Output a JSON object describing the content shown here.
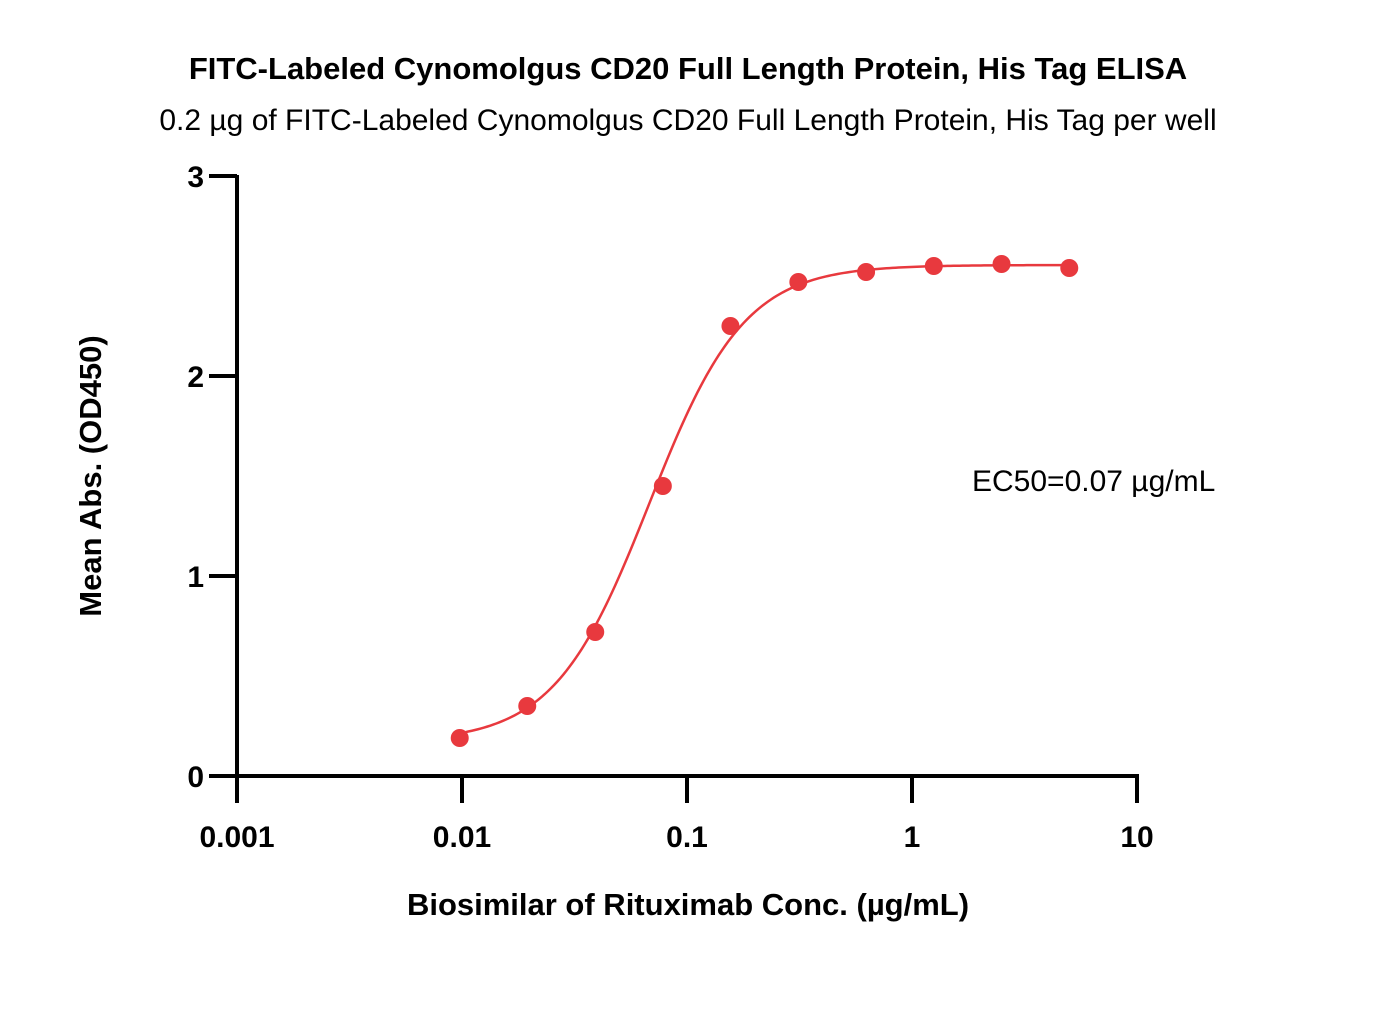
{
  "chart_data": {
    "type": "scatter",
    "title": "FITC-Labeled Cynomolgus CD20 Full Length Protein, His Tag ELISA",
    "subtitle": "0.2 µg of FITC-Labeled Cynomolgus CD20 Full Length Protein, His Tag per well",
    "xlabel": "Biosimilar of Rituximab Conc. (µg/mL)",
    "ylabel": "Mean Abs. (OD450)",
    "x_scale": "log",
    "xlim": [
      0.001,
      10
    ],
    "ylim": [
      0,
      3
    ],
    "x_ticks": [
      0.001,
      0.01,
      0.1,
      1,
      10
    ],
    "x_tick_labels": [
      "0.001",
      "0.01",
      "0.1",
      "1",
      "10"
    ],
    "y_ticks": [
      0,
      1,
      2,
      3
    ],
    "y_tick_labels": [
      "0",
      "1",
      "2",
      "3"
    ],
    "grid": false,
    "legend": "none",
    "annotation": "EC50=0.07 µg/mL",
    "color": "#e8393e",
    "series": [
      {
        "x": [
          0.00977,
          0.0195,
          0.0391,
          0.0781,
          0.156,
          0.3125,
          0.625,
          1.25,
          2.5,
          5
        ],
        "y": [
          0.19,
          0.35,
          0.72,
          1.45,
          2.25,
          2.47,
          2.52,
          2.55,
          2.56,
          2.54
        ],
        "fit": "4PL sigmoid"
      }
    ]
  }
}
